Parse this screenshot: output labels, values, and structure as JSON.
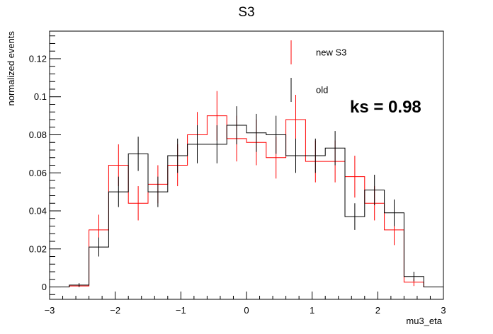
{
  "chart_data": {
    "type": "histogram",
    "title": "S3",
    "xlabel": "mu3_eta",
    "ylabel": "normalized events",
    "xlim": [
      -3,
      3
    ],
    "ylim": [
      -0.0065,
      0.1345
    ],
    "grid": false,
    "legend_position": "top-right",
    "x_ticks": [
      "−3",
      "−2",
      "−1",
      "0",
      "1",
      "2",
      "3"
    ],
    "y_ticks": [
      "0",
      "0.02",
      "0.04",
      "0.06",
      "0.08",
      "0.1",
      "0.12"
    ],
    "bin_edges": [
      -3.0,
      -2.7,
      -2.4,
      -2.1,
      -1.8,
      -1.5,
      -1.2,
      -0.9,
      -0.6,
      -0.3,
      0.0,
      0.3,
      0.6,
      0.9,
      1.2,
      1.5,
      1.8,
      2.1,
      2.4,
      2.7,
      3.0
    ],
    "series": [
      {
        "name": "new S3",
        "color": "#ff0000",
        "values": [
          0.0,
          0.0005,
          0.03,
          0.064,
          0.044,
          0.054,
          0.064,
          0.08,
          0.09,
          0.078,
          0.076,
          0.068,
          0.088,
          0.066,
          0.066,
          0.058,
          0.044,
          0.03,
          0.0025,
          0.0
        ],
        "errors": [
          0.0,
          0.0005,
          0.008,
          0.011,
          0.009,
          0.01,
          0.011,
          0.012,
          0.013,
          0.012,
          0.012,
          0.011,
          0.013,
          0.011,
          0.011,
          0.011,
          0.009,
          0.008,
          0.002,
          0.0
        ]
      },
      {
        "name": "old",
        "color": "#000000",
        "values": [
          0.0,
          0.001,
          0.021,
          0.05,
          0.07,
          0.05,
          0.069,
          0.075,
          0.075,
          0.085,
          0.081,
          0.08,
          0.069,
          0.069,
          0.073,
          0.037,
          0.051,
          0.039,
          0.0055,
          0.0
        ],
        "errors": [
          0.0,
          0.001,
          0.005,
          0.008,
          0.009,
          0.008,
          0.009,
          0.01,
          0.01,
          0.01,
          0.01,
          0.01,
          0.009,
          0.009,
          0.009,
          0.007,
          0.008,
          0.007,
          0.0025,
          0.0
        ]
      }
    ],
    "annotation": "ks = 0.98"
  }
}
